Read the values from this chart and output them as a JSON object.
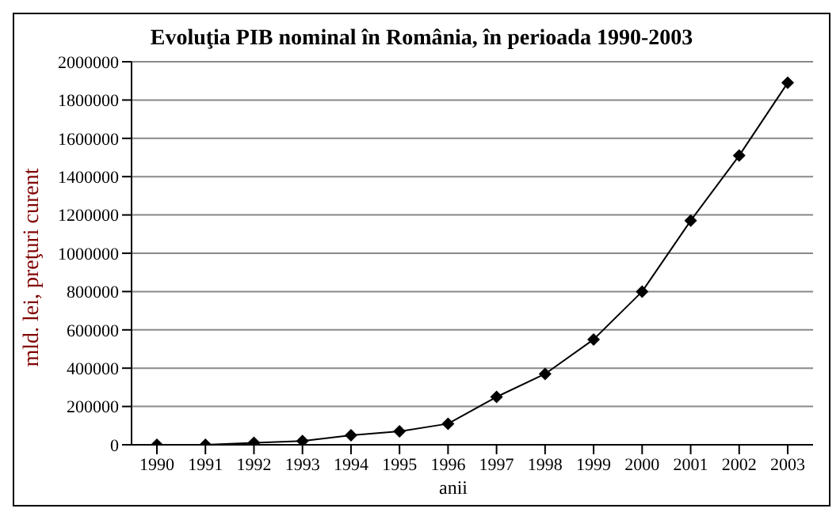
{
  "chart_data": {
    "type": "line",
    "title": "Evoluţia PIB nominal în România, în perioada 1990-2003",
    "xlabel": "anii",
    "ylabel": "mld. lei, preţuri curent",
    "categories": [
      "1990",
      "1991",
      "1992",
      "1993",
      "1994",
      "1995",
      "1996",
      "1997",
      "1998",
      "1999",
      "2000",
      "2001",
      "2002",
      "2003"
    ],
    "series": [
      {
        "color": "#000000",
        "values": [
          0,
          0,
          10000,
          20000,
          50000,
          70000,
          110000,
          250000,
          370000,
          550000,
          800000,
          1170000,
          1510000,
          1890000
        ]
      }
    ],
    "ylim": [
      0,
      2000000
    ],
    "yticks": [
      0,
      200000,
      400000,
      600000,
      800000,
      1000000,
      1200000,
      1400000,
      1600000,
      1800000,
      2000000
    ],
    "grid": "y",
    "legend": false,
    "marker": "diamond",
    "line_style": "solid"
  }
}
